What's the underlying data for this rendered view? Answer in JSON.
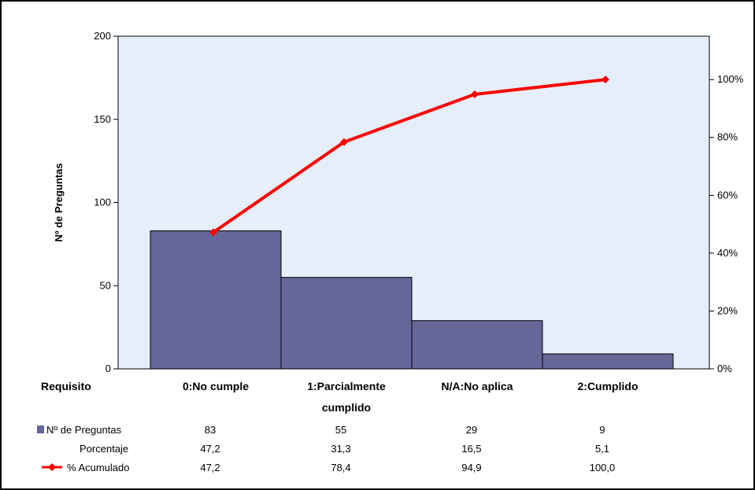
{
  "chart_data": {
    "type": "bar",
    "title": "",
    "xlabel": "Requisito",
    "ylabel": "Nº de Preguntas",
    "ylim": [
      0,
      200
    ],
    "y2lim": [
      0,
      1.15
    ],
    "yticks": [
      "0",
      "50",
      "100",
      "150",
      "200"
    ],
    "y2ticks": [
      "0%",
      "20%",
      "40%",
      "60%",
      "80%",
      "100%"
    ],
    "categories": [
      "0:No cumple",
      "1:Parcialmente cumplido",
      "N/A:No aplica",
      "2:Cumplido"
    ],
    "category_lines": [
      [
        "0:No cumple"
      ],
      [
        "1:Parcialmente",
        "cumplido"
      ],
      [
        "N/A:No aplica"
      ],
      [
        "2:Cumplido"
      ]
    ],
    "series": [
      {
        "name": "Nº de Preguntas",
        "type": "bar",
        "values": [
          83,
          55,
          29,
          9
        ],
        "color": "#666699"
      },
      {
        "name": "% Acumulado",
        "type": "line",
        "values": [
          47.2,
          78.4,
          94.9,
          100.0
        ],
        "color": "#ff0000"
      }
    ],
    "table": {
      "header": "Requisito",
      "rows": [
        {
          "label": "Nº de Preguntas",
          "values": [
            "83",
            "55",
            "29",
            "9"
          ]
        },
        {
          "label": "Porcentaje",
          "values": [
            "47,2",
            "31,3",
            "16,5",
            "5,1"
          ]
        },
        {
          "label": "% Acumulado",
          "values": [
            "47,2",
            "78,4",
            "94,9",
            "100,0"
          ]
        }
      ]
    },
    "grid": false,
    "plot_background": "#e6eefa"
  }
}
